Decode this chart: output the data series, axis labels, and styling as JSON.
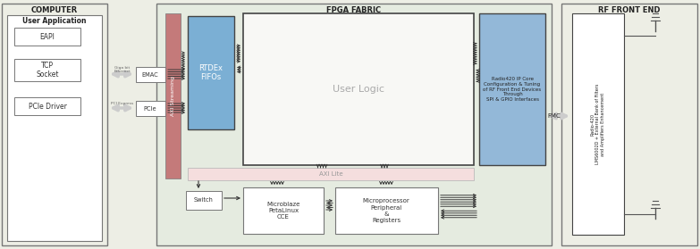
{
  "bg_outer": "#edeee5",
  "bg_computer_inner": "#ffffff",
  "bg_fpga": "#e5ebe0",
  "bg_rtdex": "#7bafd4",
  "bg_axi_streaming": "#c47a7a",
  "bg_axi_lite": "#f5dede",
  "bg_radio420_ip": "#93b8d8",
  "bg_white": "#ffffff",
  "bg_user_logic": "#f8f8f5",
  "title_computer": "COMPUTER",
  "title_fpga": "FPGA FABRIC",
  "title_rf": "RF FRONT END",
  "label_user_app": "User Application",
  "label_eapi": "EAPI",
  "label_tcp": "TCP\nSocket",
  "label_pcie_driver": "PCIe Driver",
  "label_emac": "EMAC",
  "label_pcie": "PCIe",
  "label_gige": "Giga bit\nEthernet",
  "label_pci_express": "PCI Express",
  "label_axi_streaming": "AXI Streaming",
  "label_rtdex": "RTDEx\nFIFOs",
  "label_user_logic": "User Logic",
  "label_axi_lite": "AXI Lite",
  "label_switch": "Switch",
  "label_microblaze": "Microblaze\nPetaLinux\nCCE",
  "label_microprocessor": "Microprocessor\nPeripheral\n&\nRegisters",
  "label_radio420_ip": "Radio420 IP Core\nConfiguration & Tuning\nof RF Front End Devices\nThrough\nSPI & GPIO Interfaces",
  "label_fmc": "FMC",
  "label_radio420_rf": "Radio-420\nLMS6002D + External Bank of Filters\nand Amplifiers Enhancement",
  "ec_dark": "#444444",
  "ec_medium": "#777777",
  "tc_dark": "#222222",
  "tc_medium": "#444444",
  "tc_light": "#888888"
}
